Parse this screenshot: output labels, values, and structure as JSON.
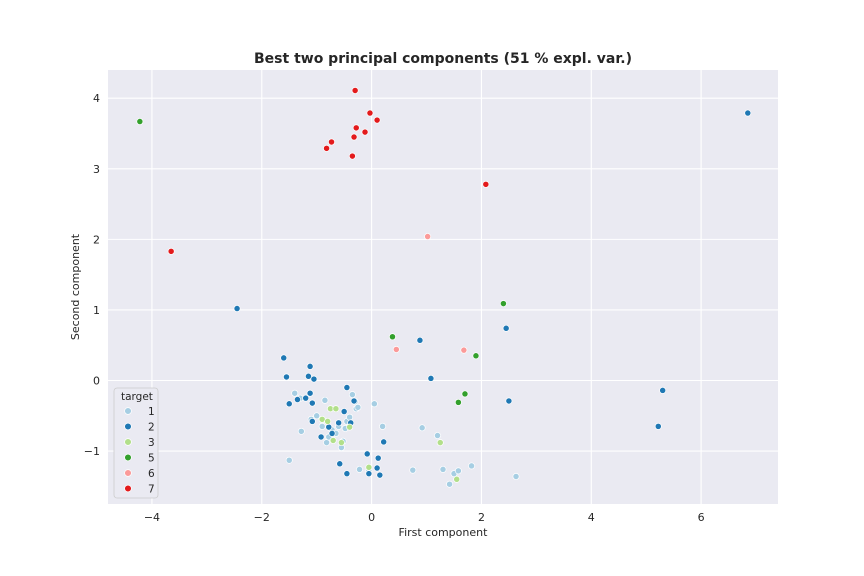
{
  "chart_data": {
    "type": "scatter",
    "title": "Best two principal components (51 % expl. var.)",
    "xlabel": "First component",
    "ylabel": "Second component",
    "xlim": [
      -4.8,
      7.4
    ],
    "ylim": [
      -1.75,
      4.4
    ],
    "xticks": [
      -4,
      -2,
      0,
      2,
      4,
      6
    ],
    "xtick_labels": [
      "−4",
      "−2",
      "0",
      "2",
      "4",
      "6"
    ],
    "yticks": [
      -1,
      0,
      1,
      2,
      3,
      4
    ],
    "ytick_labels": [
      "−1",
      "0",
      "1",
      "2",
      "3",
      "4"
    ],
    "grid": true,
    "background": "#eaeaf2",
    "legend": {
      "title": "target",
      "placement": "lower-left"
    },
    "series": [
      {
        "name": "1",
        "color": "#a6cee3",
        "points": [
          [
            -1.5,
            -1.13
          ],
          [
            -1.4,
            -0.18
          ],
          [
            -1.3,
            -0.25
          ],
          [
            -1.28,
            -0.72
          ],
          [
            -1.1,
            -0.55
          ],
          [
            -1.0,
            -0.5
          ],
          [
            -0.9,
            -0.65
          ],
          [
            -0.85,
            -0.28
          ],
          [
            -0.82,
            -0.88
          ],
          [
            -0.78,
            -0.8
          ],
          [
            -0.72,
            -0.7
          ],
          [
            -0.65,
            -0.75
          ],
          [
            -0.6,
            -0.65
          ],
          [
            -0.55,
            -0.95
          ],
          [
            -0.52,
            -0.86
          ],
          [
            -0.48,
            -0.68
          ],
          [
            -0.45,
            -0.58
          ],
          [
            -0.4,
            -0.52
          ],
          [
            -0.35,
            -0.2
          ],
          [
            -0.3,
            -0.3
          ],
          [
            -0.28,
            -0.4
          ],
          [
            -0.25,
            -0.38
          ],
          [
            -0.22,
            -1.26
          ],
          [
            -0.05,
            -1.28
          ],
          [
            0.05,
            -0.33
          ],
          [
            0.2,
            -0.65
          ],
          [
            0.75,
            -1.27
          ],
          [
            0.92,
            -0.67
          ],
          [
            1.2,
            -0.78
          ],
          [
            1.3,
            -1.26
          ],
          [
            1.42,
            -1.47
          ],
          [
            1.5,
            -1.32
          ],
          [
            1.58,
            -1.28
          ],
          [
            1.82,
            -1.21
          ],
          [
            2.63,
            -1.36
          ]
        ]
      },
      {
        "name": "2",
        "color": "#1f78b4",
        "points": [
          [
            6.85,
            3.79
          ],
          [
            -2.45,
            1.02
          ],
          [
            -1.6,
            0.32
          ],
          [
            -1.55,
            0.05
          ],
          [
            -1.5,
            -0.33
          ],
          [
            -1.35,
            -0.27
          ],
          [
            -1.2,
            -0.25
          ],
          [
            -1.15,
            0.06
          ],
          [
            -1.12,
            -0.18
          ],
          [
            -1.12,
            0.2
          ],
          [
            -1.08,
            -0.32
          ],
          [
            -1.08,
            -0.58
          ],
          [
            -1.05,
            0.02
          ],
          [
            -0.92,
            -0.8
          ],
          [
            -0.78,
            -0.66
          ],
          [
            -0.72,
            -0.75
          ],
          [
            -0.6,
            -0.6
          ],
          [
            -0.58,
            -1.18
          ],
          [
            -0.5,
            -0.44
          ],
          [
            -0.45,
            -0.1
          ],
          [
            -0.45,
            -1.32
          ],
          [
            -0.38,
            -0.6
          ],
          [
            -0.32,
            -0.29
          ],
          [
            -0.08,
            -1.04
          ],
          [
            -0.05,
            -1.32
          ],
          [
            0.1,
            -1.24
          ],
          [
            0.12,
            -1.1
          ],
          [
            0.15,
            -1.34
          ],
          [
            0.22,
            -0.87
          ],
          [
            0.88,
            0.57
          ],
          [
            1.08,
            0.03
          ],
          [
            2.45,
            0.74
          ],
          [
            2.5,
            -0.29
          ],
          [
            5.22,
            -0.65
          ],
          [
            5.3,
            -0.14
          ]
        ]
      },
      {
        "name": "3",
        "color": "#b2df8a",
        "points": [
          [
            -0.9,
            -0.55
          ],
          [
            -0.8,
            -0.58
          ],
          [
            -0.75,
            -0.4
          ],
          [
            -0.7,
            -0.85
          ],
          [
            -0.65,
            -0.4
          ],
          [
            -0.55,
            -0.88
          ],
          [
            -0.4,
            -0.66
          ],
          [
            -0.05,
            -1.23
          ],
          [
            1.25,
            -0.88
          ],
          [
            1.55,
            -1.4
          ]
        ]
      },
      {
        "name": "5",
        "color": "#33a02c",
        "points": [
          [
            -4.22,
            3.67
          ],
          [
            0.38,
            0.62
          ],
          [
            1.58,
            -0.31
          ],
          [
            1.7,
            -0.19
          ],
          [
            1.9,
            0.35
          ],
          [
            2.4,
            1.09
          ]
        ]
      },
      {
        "name": "6",
        "color": "#fb9a99",
        "points": [
          [
            0.45,
            0.44
          ],
          [
            1.02,
            2.04
          ],
          [
            1.68,
            0.43
          ]
        ]
      },
      {
        "name": "7",
        "color": "#e31a1c",
        "points": [
          [
            -3.65,
            1.83
          ],
          [
            -0.82,
            3.29
          ],
          [
            -0.73,
            3.38
          ],
          [
            -0.35,
            3.18
          ],
          [
            -0.32,
            3.45
          ],
          [
            -0.3,
            4.11
          ],
          [
            -0.28,
            3.58
          ],
          [
            -0.12,
            3.52
          ],
          [
            -0.03,
            3.79
          ],
          [
            0.1,
            3.69
          ],
          [
            2.08,
            2.78
          ]
        ]
      }
    ]
  }
}
